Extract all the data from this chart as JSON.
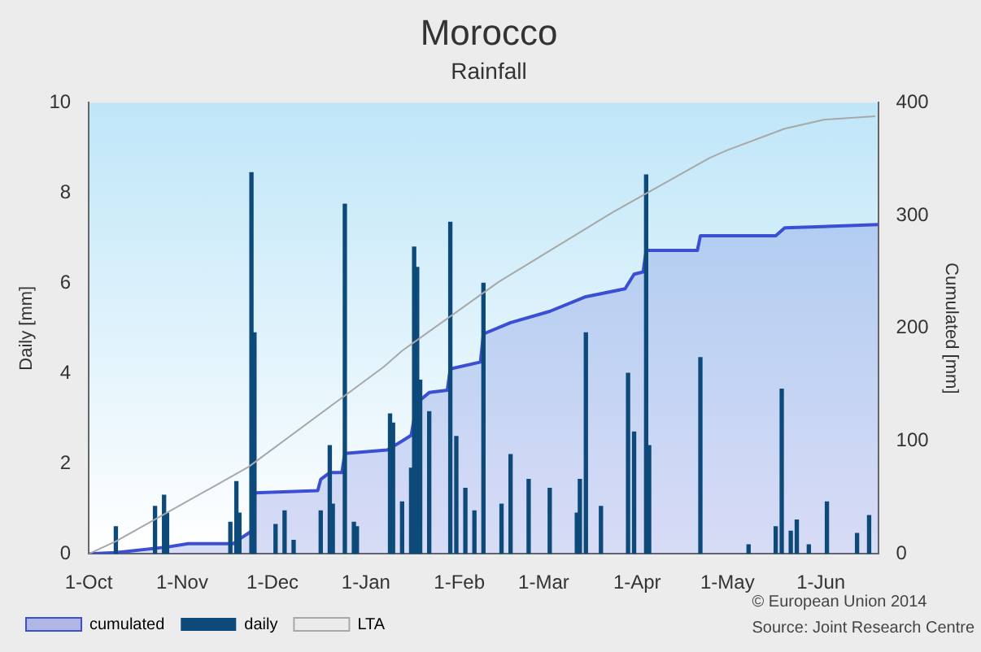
{
  "chart_data": {
    "type": "bar",
    "title": "Morocco",
    "subtitle": "Rainfall",
    "ylabel": "Daily [mm]",
    "y2label": "Cumulated [mm]",
    "xlim": [
      "2013-10-01",
      "2014-06-20"
    ],
    "xticks": [
      {
        "value": "2013-10-01",
        "label": "1-Oct"
      },
      {
        "value": "2013-11-01",
        "label": "1-Nov"
      },
      {
        "value": "2013-12-01",
        "label": "1-Dec"
      },
      {
        "value": "2014-01-01",
        "label": "1-Jan"
      },
      {
        "value": "2014-02-01",
        "label": "1-Feb"
      },
      {
        "value": "2014-03-01",
        "label": "1-Mar"
      },
      {
        "value": "2014-04-01",
        "label": "1-Apr"
      },
      {
        "value": "2014-05-01",
        "label": "1-May"
      },
      {
        "value": "2014-06-01",
        "label": "1-Jun"
      }
    ],
    "ylim": [
      0,
      10
    ],
    "yticks": [
      0,
      2,
      4,
      6,
      8,
      10
    ],
    "y2lim": [
      0,
      400
    ],
    "y2ticks": [
      0,
      100,
      200,
      300,
      400
    ],
    "grid": false,
    "legend": "bottom left",
    "series": [
      {
        "name": "cumulated",
        "type": "area",
        "axis": "y2",
        "color": "#3b4fd4",
        "x": [
          "2013-10-01",
          "2013-10-10",
          "2013-10-27",
          "2013-11-03",
          "2013-11-18",
          "2013-11-20",
          "2013-11-24",
          "2013-11-25",
          "2013-12-16",
          "2013-12-17",
          "2013-12-20",
          "2013-12-24",
          "2013-12-25",
          "2014-01-08",
          "2014-01-13",
          "2014-01-16",
          "2014-01-17",
          "2014-01-18",
          "2014-01-22",
          "2014-01-28",
          "2014-01-29",
          "2014-02-08",
          "2014-02-09",
          "2014-02-18",
          "2014-03-03",
          "2014-03-15",
          "2014-03-28",
          "2014-03-31",
          "2014-04-03",
          "2014-04-04",
          "2014-04-21",
          "2014-04-22",
          "2014-05-17",
          "2014-05-20",
          "2014-06-20"
        ],
        "values": [
          0,
          1,
          6,
          9,
          9,
          13,
          20,
          54,
          56,
          66,
          72,
          72,
          89,
          92,
          100,
          105,
          120,
          134,
          143,
          145,
          164,
          170,
          195,
          205,
          215,
          228,
          235,
          248,
          250,
          269,
          269,
          282,
          282,
          289,
          292
        ]
      },
      {
        "name": "daily",
        "axis": "y",
        "color": "#0d4a7a",
        "x": [
          "2013-10-10",
          "2013-10-23",
          "2013-10-26",
          "2013-10-27",
          "2013-11-17",
          "2013-11-19",
          "2013-11-20",
          "2013-11-24",
          "2013-11-25",
          "2013-12-02",
          "2013-12-05",
          "2013-12-08",
          "2013-12-17",
          "2013-12-20",
          "2013-12-21",
          "2013-12-25",
          "2013-12-28",
          "2013-12-29",
          "2014-01-09",
          "2014-01-10",
          "2014-01-13",
          "2014-01-16",
          "2014-01-17",
          "2014-01-18",
          "2014-01-19",
          "2014-01-22",
          "2014-01-29",
          "2014-01-31",
          "2014-02-03",
          "2014-02-06",
          "2014-02-09",
          "2014-02-15",
          "2014-02-18",
          "2014-02-24",
          "2014-03-03",
          "2014-03-12",
          "2014-03-13",
          "2014-03-15",
          "2014-03-20",
          "2014-03-29",
          "2014-03-31",
          "2014-04-04",
          "2014-04-05",
          "2014-04-22",
          "2014-05-08",
          "2014-05-17",
          "2014-05-19",
          "2014-05-22",
          "2014-05-24",
          "2014-05-28",
          "2014-06-03",
          "2014-06-13",
          "2014-06-17"
        ],
        "values": [
          0.6,
          1.05,
          1.3,
          0.9,
          0.7,
          1.6,
          0.9,
          8.45,
          4.9,
          0.65,
          0.95,
          0.3,
          0.95,
          2.4,
          1.1,
          7.75,
          0.7,
          0.6,
          3.1,
          2.9,
          1.15,
          1.9,
          6.8,
          6.35,
          3.85,
          3.15,
          7.35,
          2.6,
          1.45,
          0.95,
          6.0,
          1.1,
          2.2,
          1.65,
          1.45,
          0.9,
          1.65,
          4.9,
          1.05,
          4.0,
          2.7,
          8.4,
          2.4,
          4.35,
          0.2,
          0.6,
          3.65,
          0.5,
          0.75,
          0.2,
          1.15,
          0.45,
          0.85
        ]
      },
      {
        "name": "LTA",
        "type": "line",
        "axis": "y2",
        "color": "#a8a8a8",
        "x": [
          "2013-10-01",
          "2013-10-10",
          "2013-11-23",
          "2014-01-07",
          "2014-01-13",
          "2014-02-14",
          "2014-03-24",
          "2014-04-25",
          "2014-05-01",
          "2014-05-20",
          "2014-06-02",
          "2014-06-19"
        ],
        "values": [
          0,
          11,
          77,
          166,
          180,
          241,
          303,
          351,
          358,
          377,
          385,
          388
        ]
      }
    ],
    "annotations": [
      "© European Union 2014",
      "Source: Joint Research Centre"
    ]
  }
}
